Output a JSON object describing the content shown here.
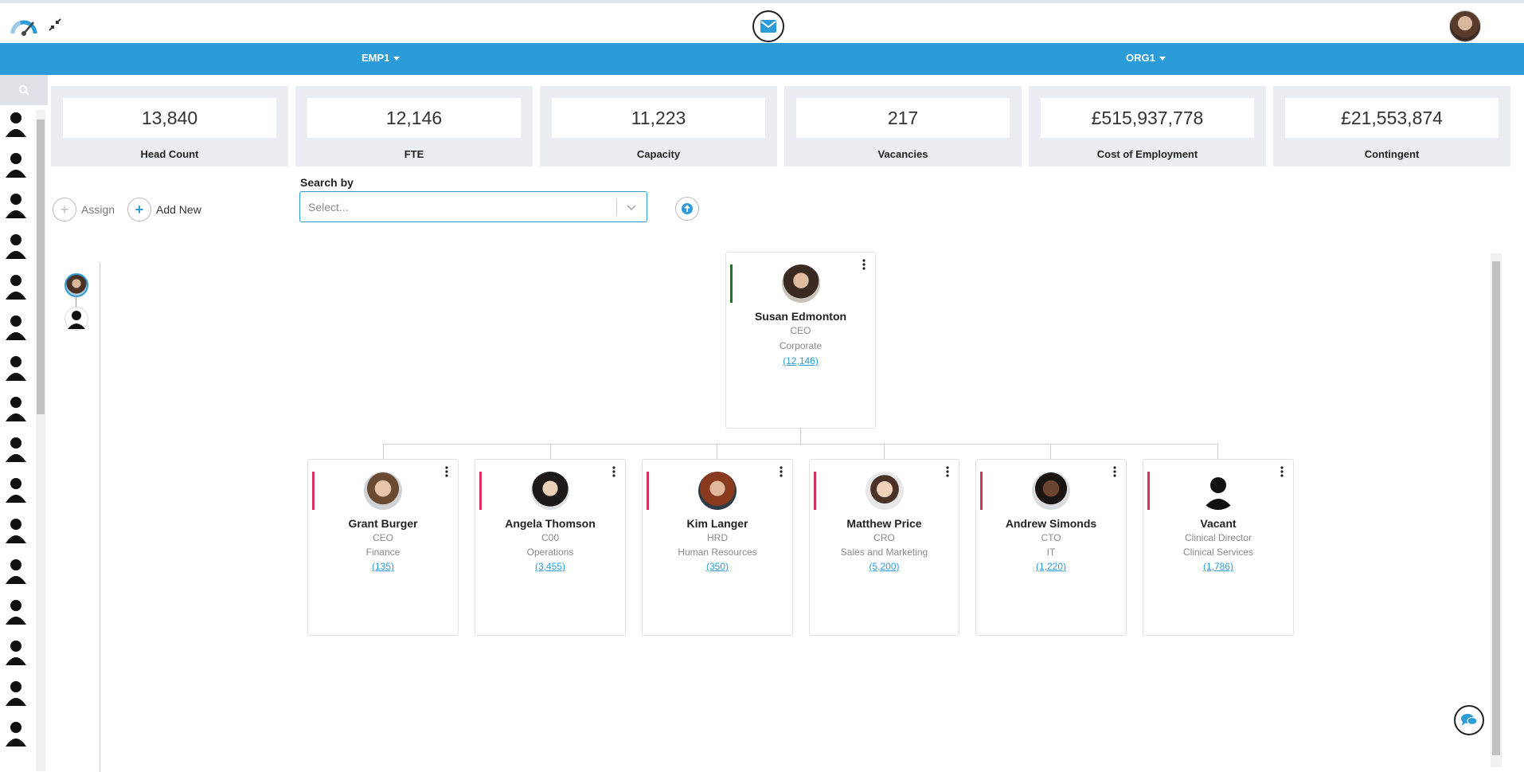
{
  "header": {
    "logo_icon": "speedometer-logo-icon",
    "collapse_icon": "compress-arrows-icon",
    "mail_icon": "envelope-icon",
    "user_avatar": "user-avatar"
  },
  "filters": {
    "emp_label": "EMP1",
    "org_label": "ORG1"
  },
  "colors": {
    "accent": "#2b9cd8",
    "ceo_bar": "#1a7a1a",
    "report_bar": "#d6335b"
  },
  "stats": [
    {
      "value": "13,840",
      "label": "Head Count"
    },
    {
      "value": "12,146",
      "label": "FTE"
    },
    {
      "value": "11,223",
      "label": "Capacity"
    },
    {
      "value": "217",
      "label": "Vacancies"
    },
    {
      "value": "£515,937,778",
      "label": "Cost of Employment"
    },
    {
      "value": "£21,553,874",
      "label": "Contingent"
    }
  ],
  "actions": {
    "assign_label": "Assign",
    "add_new_label": "Add New"
  },
  "search": {
    "label": "Search by",
    "placeholder": "Select..."
  },
  "org": {
    "root": {
      "name": "Susan Edmonton",
      "title": "CEO",
      "dept": "Corporate",
      "count": "(12,146)"
    },
    "children": [
      {
        "name": "Grant Burger",
        "title": "CEO",
        "dept": "Finance",
        "count": "(135)"
      },
      {
        "name": "Angela Thomson",
        "title": "C00",
        "dept": "Operations",
        "count": "(3,455)"
      },
      {
        "name": "Kim Langer",
        "title": "HRD",
        "dept": "Human Resources",
        "count": "(350)"
      },
      {
        "name": "Matthew Price",
        "title": "CRO",
        "dept": "Sales and Marketing",
        "count": "(5,200)"
      },
      {
        "name": "Andrew Simonds",
        "title": "CTO",
        "dept": "IT",
        "count": "(1,220)"
      },
      {
        "name": "Vacant",
        "title": "Clinical Director",
        "dept": "Clinical Services",
        "count": "(1,786)"
      }
    ]
  }
}
